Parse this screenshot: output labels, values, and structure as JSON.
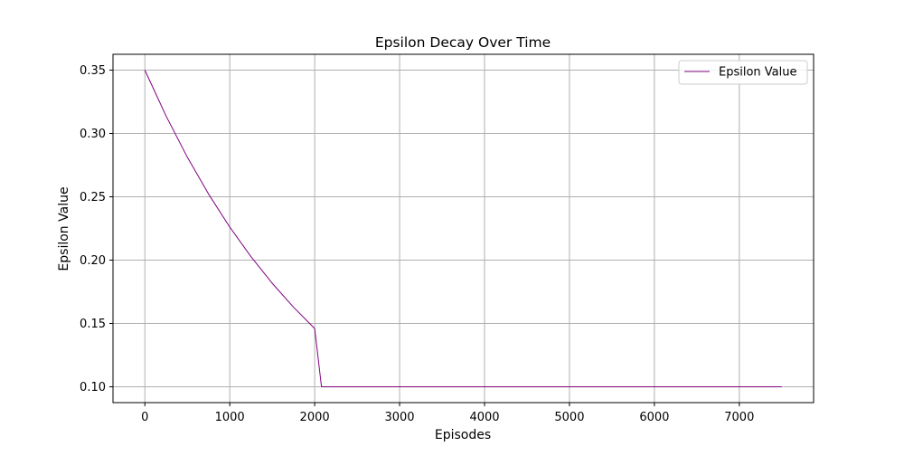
{
  "chart_data": {
    "type": "line",
    "title": "Epsilon Decay Over Time",
    "xlabel": "Episodes",
    "ylabel": "Epsilon Value",
    "xlim": [
      -375,
      7875
    ],
    "ylim": [
      0.0875,
      0.3625
    ],
    "x_ticks": [
      0,
      1000,
      2000,
      3000,
      4000,
      5000,
      6000,
      7000
    ],
    "x_tick_labels": [
      "0",
      "1000",
      "2000",
      "3000",
      "4000",
      "5000",
      "6000",
      "7000"
    ],
    "y_ticks": [
      0.1,
      0.15,
      0.2,
      0.25,
      0.3,
      0.35
    ],
    "y_tick_labels": [
      "0.10",
      "0.15",
      "0.20",
      "0.25",
      "0.30",
      "0.35"
    ],
    "grid": true,
    "legend_position": "top-right",
    "series": [
      {
        "name": "Epsilon Value",
        "color": "#800080",
        "x": [
          0,
          250,
          500,
          750,
          1000,
          1250,
          1500,
          1750,
          2000,
          2080,
          3000,
          4000,
          5000,
          6000,
          7000,
          7500
        ],
        "y": [
          0.35,
          0.3138,
          0.2813,
          0.2522,
          0.2261,
          0.2027,
          0.1817,
          0.1629,
          0.146,
          0.1,
          0.1,
          0.1,
          0.1,
          0.1,
          0.1,
          0.1
        ]
      }
    ]
  }
}
